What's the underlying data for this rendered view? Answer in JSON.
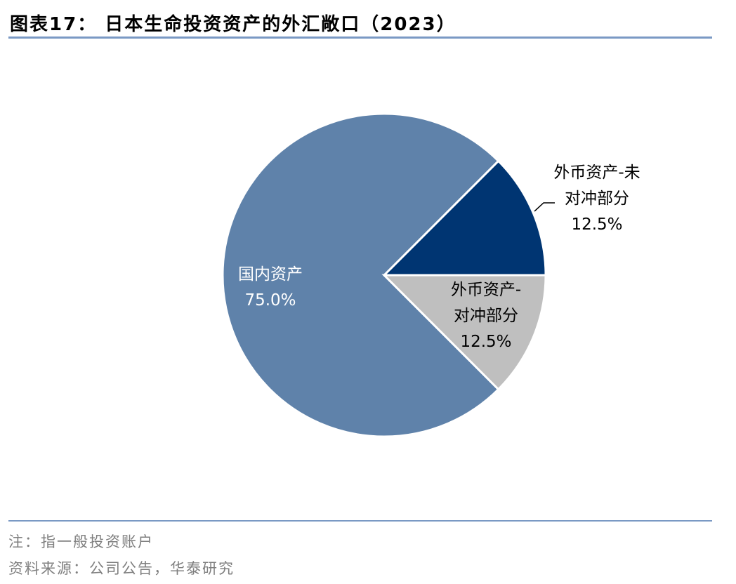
{
  "title": "图表17：  日本生命投资资产的外汇敞口（2023）",
  "note": "注：指一般投资账户",
  "source": "资料来源：公司公告，华泰研究",
  "chart_data": {
    "type": "pie",
    "title": "",
    "start_angle": "3 o'clock, counterclockwise for first slice",
    "slices": [
      {
        "label_lines": [
          "外币资产-未",
          "对冲部分"
        ],
        "label": "外币资产-未对冲部分",
        "value": 12.5,
        "value_label": "12.5%",
        "color": "#003572"
      },
      {
        "label_lines": [
          "国内资产"
        ],
        "label": "国内资产",
        "value": 75.0,
        "value_label": "75.0%",
        "color": "#5F82AA"
      },
      {
        "label_lines": [
          "外币资产-",
          "对冲部分"
        ],
        "label": "外币资产-对冲部分",
        "value": 12.5,
        "value_label": "12.5%",
        "color": "#BFBFBF"
      }
    ]
  }
}
